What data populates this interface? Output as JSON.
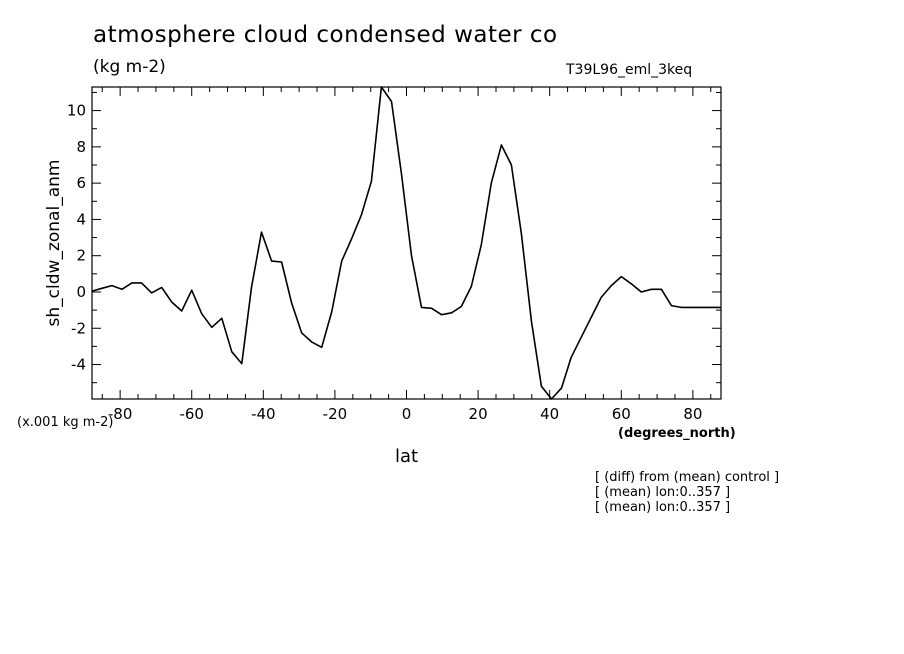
{
  "header": {
    "title": "atmosphere cloud condensed water co",
    "units": "(kg m-2)",
    "run_id": "T39L96_eml_3keq"
  },
  "axes": {
    "scale_note": "(x.001 kg m-2)",
    "x_units": "(degrees_north)"
  },
  "notes": [
    "[ (diff) from (mean) control ]",
    "[ (mean) lon:0..357 ]",
    "[ (mean) lon:0..357 ]"
  ],
  "chart_data": {
    "type": "line",
    "title": "atmosphere cloud condensed water co",
    "subtitle": "(kg m-2)",
    "xlabel": "lat",
    "ylabel": "sh_cldw_zonal_anm",
    "xlim": [
      -87.86,
      87.86
    ],
    "ylim": [
      -5.9,
      11.3
    ],
    "xticks": [
      -80,
      -60,
      -40,
      -20,
      0,
      20,
      40,
      60,
      80
    ],
    "yticks": [
      -4,
      -2,
      0,
      2,
      4,
      6,
      8,
      10
    ],
    "grid": false,
    "line_color": "#000000",
    "series": [
      {
        "x": [
          -87.86,
          -85.1,
          -82.3,
          -79.5,
          -76.7,
          -74.0,
          -71.2,
          -68.4,
          -65.6,
          -62.8,
          -60.0,
          -57.2,
          -54.4,
          -51.6,
          -48.8,
          -46.0,
          -43.3,
          -40.5,
          -37.7,
          -34.9,
          -32.1,
          -29.3,
          -26.5,
          -23.7,
          -20.9,
          -18.1,
          -15.3,
          -12.6,
          -9.8,
          -7.0,
          -4.2,
          -1.4,
          1.4,
          4.2,
          7.0,
          9.8,
          12.6,
          15.3,
          18.1,
          20.9,
          23.7,
          26.5,
          29.3,
          32.1,
          34.9,
          37.7,
          40.5,
          43.3,
          46.0,
          48.8,
          51.6,
          54.4,
          57.2,
          60.0,
          62.8,
          65.6,
          68.4,
          71.2,
          74.0,
          76.7,
          79.5,
          82.3,
          85.1,
          87.86
        ],
        "values": [
          0.05,
          0.2,
          0.35,
          0.15,
          0.5,
          0.5,
          -0.05,
          0.25,
          -0.55,
          -1.05,
          0.1,
          -1.2,
          -1.95,
          -1.45,
          -3.3,
          -3.95,
          0.25,
          3.3,
          1.7,
          1.65,
          -0.6,
          -2.25,
          -2.75,
          -3.05,
          -1.1,
          1.7,
          2.95,
          4.25,
          6.1,
          11.3,
          10.5,
          6.5,
          2.0,
          -0.85,
          -0.9,
          -1.25,
          -1.15,
          -0.8,
          0.3,
          2.6,
          6.0,
          8.1,
          7.0,
          3.2,
          -1.6,
          -5.2,
          -5.9,
          -5.3,
          -3.6,
          -2.5,
          -1.4,
          -0.3,
          0.35,
          0.85,
          0.45,
          0.0,
          0.15,
          0.15,
          -0.75,
          -0.85,
          -0.85,
          -0.85,
          -0.85,
          -0.85
        ]
      }
    ]
  }
}
